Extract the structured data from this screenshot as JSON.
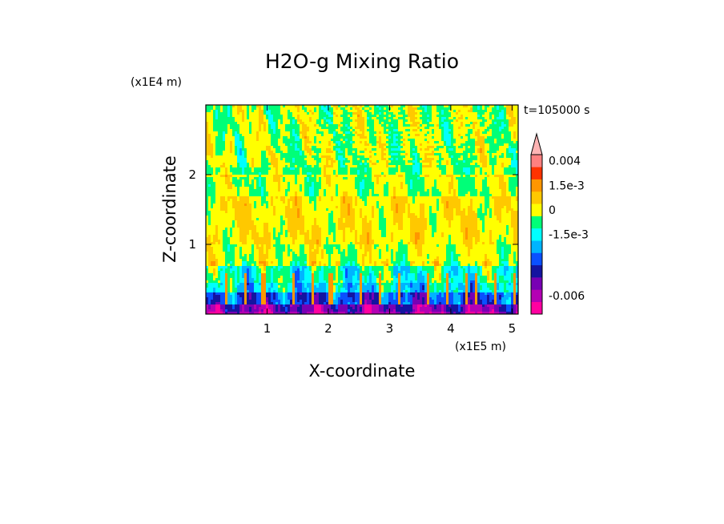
{
  "chart_data": {
    "type": "heatmap",
    "title": "H2O-g Mixing Ratio",
    "xlabel": "X-coordinate",
    "ylabel": "Z-coordinate",
    "x_unit": "(x1E5 m)",
    "y_unit": "(x1E4 m)",
    "time_label": "t=105000 s",
    "xlim": [
      0,
      5.1
    ],
    "ylim": [
      0,
      3.0
    ],
    "x_ticks": [
      {
        "value": 1,
        "label": "1"
      },
      {
        "value": 2,
        "label": "2"
      },
      {
        "value": 3,
        "label": "3"
      },
      {
        "value": 4,
        "label": "4"
      },
      {
        "value": 5,
        "label": "5"
      }
    ],
    "y_ticks": [
      {
        "value": 1,
        "label": "1"
      },
      {
        "value": 2,
        "label": "2"
      }
    ],
    "colorbar": {
      "levels": [
        {
          "color": "#ff00a0"
        },
        {
          "color": "#b400b4"
        },
        {
          "color": "#7800b4"
        },
        {
          "color": "#1414a0"
        },
        {
          "color": "#0a50ff"
        },
        {
          "color": "#00b4ff"
        },
        {
          "color": "#00ffff"
        },
        {
          "color": "#00ff78"
        },
        {
          "color": "#ffff00"
        },
        {
          "color": "#ffc800"
        },
        {
          "color": "#ff9600"
        },
        {
          "color": "#ff3200"
        },
        {
          "color": "#ff8080"
        }
      ],
      "top_triangle_color": "#ffb4b4",
      "labels": [
        {
          "index": 12,
          "text": "0.004"
        },
        {
          "index": 10,
          "text": "1.5e-3"
        },
        {
          "index": 8,
          "text": "0"
        },
        {
          "index": 6,
          "text": "-1.5e-3"
        },
        {
          "index": 1,
          "text": "-0.006"
        }
      ]
    }
  }
}
